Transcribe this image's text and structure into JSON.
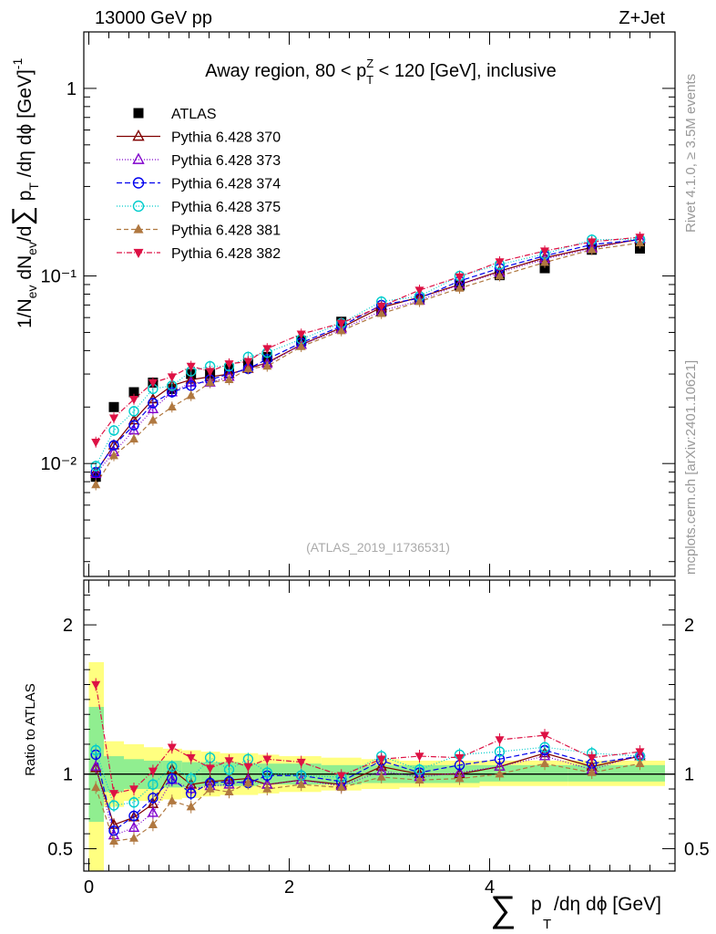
{
  "header": {
    "left": "13000 GeV pp",
    "right": "Z+Jet"
  },
  "side_labels": {
    "rivet": "Rivet 4.1.0, ≥ 3.5M events",
    "mcplots": "mcplots.cern.ch [arXiv:2401.10621]"
  },
  "chart_data": [
    {
      "type": "scatter",
      "title_parts": {
        "pre": "Away region, 80 < p",
        "sup": "Z",
        "sub": "T",
        "post": " < 120 [GeV], inclusive"
      },
      "ylabel_parts": [
        "1/N",
        "ev",
        " dN",
        "ev",
        "/d",
        "∑",
        " p",
        "T",
        " /dη dϕ  [GeV]",
        "-1"
      ],
      "yscale": "log",
      "ylim": [
        0.0025,
        2.0
      ],
      "xlim": [
        -0.05,
        5.85
      ],
      "y_tick_labels": [
        "10⁻²",
        "10⁻¹",
        "1"
      ],
      "watermark": "(ATLAS_2019_I1736531)",
      "x": [
        0.07,
        0.25,
        0.45,
        0.64,
        0.83,
        1.02,
        1.21,
        1.4,
        1.59,
        1.78,
        2.12,
        2.52,
        2.92,
        3.3,
        3.7,
        4.1,
        4.55,
        5.02,
        5.5
      ],
      "series": [
        {
          "name": "ATLAS",
          "marker": "square",
          "color": "#000000",
          "dash": "",
          "values": [
            0.0085,
            0.02,
            0.024,
            0.027,
            0.025,
            0.03,
            0.03,
            0.032,
            0.034,
            0.037,
            0.045,
            0.057,
            0.065,
            0.075,
            0.089,
            0.101,
            0.11,
            0.138,
            0.14
          ]
        },
        {
          "name": "Pythia 6.428 370",
          "marker": "triangle-open",
          "color": "#800000",
          "dash": "",
          "values": [
            0.009,
            0.0125,
            0.017,
            0.022,
            0.026,
            0.028,
            0.029,
            0.03,
            0.032,
            0.0345,
            0.043,
            0.053,
            0.068,
            0.077,
            0.09,
            0.106,
            0.125,
            0.142,
            0.157
          ]
        },
        {
          "name": "Pythia 6.428 373",
          "marker": "triangle-open",
          "color": "#8000cc",
          "dash": "1,2",
          "values": [
            0.0088,
            0.0115,
            0.015,
            0.0195,
            0.024,
            0.027,
            0.027,
            0.029,
            0.033,
            0.034,
            0.043,
            0.052,
            0.065,
            0.074,
            0.09,
            0.104,
            0.123,
            0.14,
            0.158
          ]
        },
        {
          "name": "Pythia 6.428 374",
          "marker": "circle-open",
          "color": "#0000ee",
          "dash": "6,3",
          "values": [
            0.009,
            0.0125,
            0.016,
            0.021,
            0.024,
            0.026,
            0.028,
            0.03,
            0.032,
            0.036,
            0.044,
            0.054,
            0.07,
            0.076,
            0.094,
            0.11,
            0.128,
            0.147,
            0.156
          ]
        },
        {
          "name": "Pythia 6.428 375",
          "marker": "circle-open",
          "color": "#00cccc",
          "dash": "1,2",
          "values": [
            0.0097,
            0.015,
            0.019,
            0.025,
            0.026,
            0.031,
            0.033,
            0.033,
            0.037,
            0.039,
            0.046,
            0.056,
            0.073,
            0.078,
            0.1,
            0.115,
            0.131,
            0.156,
            0.157
          ]
        },
        {
          "name": "Pythia 6.428 381",
          "marker": "triangle-filled",
          "color": "#b07840",
          "dash": "5,3",
          "values": [
            0.0077,
            0.011,
            0.0135,
            0.017,
            0.02,
            0.023,
            0.027,
            0.028,
            0.032,
            0.033,
            0.042,
            0.051,
            0.063,
            0.073,
            0.086,
            0.1,
            0.118,
            0.138,
            0.15
          ]
        },
        {
          "name": "Pythia 6.428 382",
          "marker": "triangle-down-filled",
          "color": "#dd1144",
          "dash": "6,2,1,2",
          "values": [
            0.013,
            0.0175,
            0.022,
            0.027,
            0.029,
            0.033,
            0.031,
            0.034,
            0.035,
            0.041,
            0.049,
            0.056,
            0.069,
            0.084,
            0.099,
            0.119,
            0.136,
            0.152,
            0.161
          ]
        }
      ]
    },
    {
      "type": "scatter",
      "ylabel": "Ratio to ATLAS",
      "ylim": [
        0.35,
        2.3
      ],
      "y_tick_labels": [
        "0.5",
        "1",
        "2"
      ],
      "x_tick_labels": [
        "0",
        "2",
        "4"
      ],
      "xlabel_parts": [
        "∑",
        "p",
        "T",
        "/dη dϕ [GeV]"
      ],
      "band_stat_total": [
        {
          "x0": 0.0,
          "x1": 0.15,
          "green": [
            0.68,
            1.45
          ],
          "yellow": [
            0.35,
            1.75
          ]
        },
        {
          "x0": 0.15,
          "x1": 0.35,
          "green": [
            0.88,
            1.12
          ],
          "yellow": [
            0.78,
            1.22
          ]
        },
        {
          "x0": 0.35,
          "x1": 0.55,
          "green": [
            0.9,
            1.1
          ],
          "yellow": [
            0.82,
            1.2
          ]
        },
        {
          "x0": 0.55,
          "x1": 0.74,
          "green": [
            0.9,
            1.09
          ],
          "yellow": [
            0.82,
            1.18
          ]
        },
        {
          "x0": 0.74,
          "x1": 0.93,
          "green": [
            0.91,
            1.09
          ],
          "yellow": [
            0.83,
            1.17
          ]
        },
        {
          "x0": 0.93,
          "x1": 1.12,
          "green": [
            0.91,
            1.08
          ],
          "yellow": [
            0.84,
            1.16
          ]
        },
        {
          "x0": 1.12,
          "x1": 1.31,
          "green": [
            0.92,
            1.08
          ],
          "yellow": [
            0.85,
            1.15
          ]
        },
        {
          "x0": 1.31,
          "x1": 1.5,
          "green": [
            0.92,
            1.08
          ],
          "yellow": [
            0.86,
            1.14
          ]
        },
        {
          "x0": 1.5,
          "x1": 1.69,
          "green": [
            0.92,
            1.07
          ],
          "yellow": [
            0.86,
            1.14
          ]
        },
        {
          "x0": 1.69,
          "x1": 1.9,
          "green": [
            0.93,
            1.07
          ],
          "yellow": [
            0.87,
            1.13
          ]
        },
        {
          "x0": 1.9,
          "x1": 2.32,
          "green": [
            0.93,
            1.07
          ],
          "yellow": [
            0.88,
            1.12
          ]
        },
        {
          "x0": 2.32,
          "x1": 2.72,
          "green": [
            0.93,
            1.06
          ],
          "yellow": [
            0.89,
            1.11
          ]
        },
        {
          "x0": 2.72,
          "x1": 3.1,
          "green": [
            0.94,
            1.06
          ],
          "yellow": [
            0.9,
            1.1
          ]
        },
        {
          "x0": 3.1,
          "x1": 3.5,
          "green": [
            0.94,
            1.06
          ],
          "yellow": [
            0.91,
            1.09
          ]
        },
        {
          "x0": 3.5,
          "x1": 3.9,
          "green": [
            0.94,
            1.06
          ],
          "yellow": [
            0.91,
            1.09
          ]
        },
        {
          "x0": 3.9,
          "x1": 4.3,
          "green": [
            0.95,
            1.06
          ],
          "yellow": [
            0.92,
            1.09
          ]
        },
        {
          "x0": 4.3,
          "x1": 4.78,
          "green": [
            0.95,
            1.06
          ],
          "yellow": [
            0.92,
            1.09
          ]
        },
        {
          "x0": 4.78,
          "x1": 5.25,
          "green": [
            0.95,
            1.06
          ],
          "yellow": [
            0.92,
            1.09
          ]
        },
        {
          "x0": 5.25,
          "x1": 5.75,
          "green": [
            0.95,
            1.06
          ],
          "yellow": [
            0.92,
            1.09
          ]
        }
      ],
      "series": [
        {
          "name": "Pythia 6.428 370",
          "values": [
            1.04,
            0.66,
            0.71,
            0.8,
            1.03,
            0.93,
            0.95,
            0.96,
            0.97,
            0.93,
            0.96,
            0.93,
            1.05,
            1.0,
            1.0,
            1.05,
            1.14,
            1.05,
            1.12
          ]
        },
        {
          "name": "Pythia 6.428 373",
          "values": [
            1.05,
            0.59,
            0.64,
            0.74,
            0.96,
            0.9,
            0.92,
            0.93,
            0.96,
            0.93,
            0.96,
            0.92,
            1.02,
            0.98,
            1.01,
            1.05,
            1.12,
            1.03,
            1.13
          ]
        },
        {
          "name": "Pythia 6.428 374",
          "values": [
            1.13,
            0.62,
            0.72,
            0.84,
            0.97,
            0.87,
            0.94,
            0.95,
            0.94,
            0.99,
            0.99,
            0.95,
            1.09,
            1.01,
            1.06,
            1.1,
            1.16,
            1.07,
            1.12
          ]
        },
        {
          "name": "Pythia 6.428 375",
          "values": [
            1.16,
            0.79,
            0.81,
            0.93,
            1.05,
            0.97,
            1.11,
            1.03,
            1.1,
            1.01,
            0.99,
            0.98,
            1.12,
            1.03,
            1.13,
            1.15,
            1.18,
            1.14,
            1.12
          ]
        },
        {
          "name": "Pythia 6.428 381",
          "values": [
            0.91,
            0.55,
            0.57,
            0.66,
            0.82,
            0.78,
            0.9,
            0.88,
            0.94,
            0.9,
            0.93,
            0.91,
            0.98,
            0.96,
            0.97,
            1.0,
            1.07,
            1.01,
            1.07
          ]
        },
        {
          "name": "Pythia 6.428 382",
          "values": [
            1.6,
            0.87,
            0.9,
            1.02,
            1.18,
            1.11,
            1.04,
            1.09,
            1.05,
            1.1,
            1.08,
            0.99,
            1.1,
            1.12,
            1.11,
            1.23,
            1.26,
            1.11,
            1.15
          ]
        }
      ]
    }
  ]
}
